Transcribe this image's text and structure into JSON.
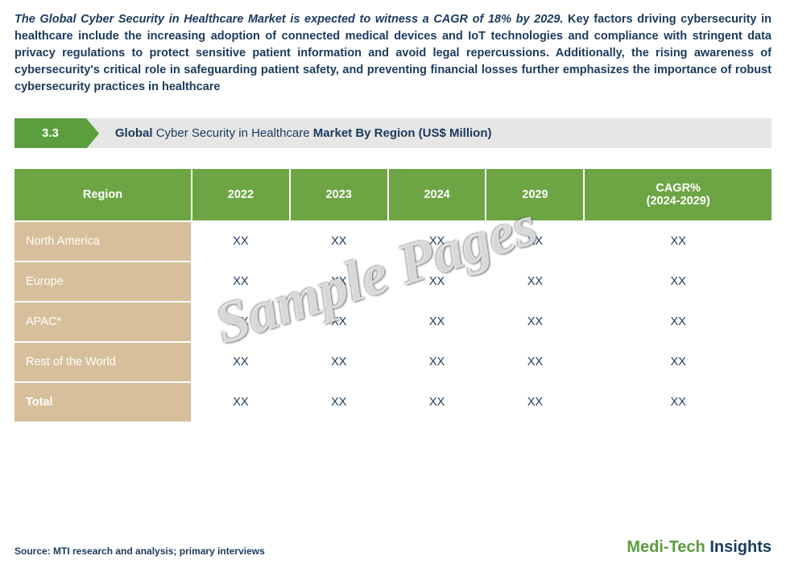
{
  "intro": {
    "lead": "The Global Cyber Security in Healthcare Market is expected to witness a CAGR of 18% by 2029.",
    "body": " Key factors driving cybersecurity in healthcare include the increasing adoption of connected medical devices and IoT technologies and compliance with stringent data privacy regulations to protect sensitive patient information and avoid legal repercussions. Additionally, the rising awareness of cybersecurity's critical role in safeguarding patient safety, and preventing financial losses further emphasizes the importance of robust cybersecurity practices in healthcare"
  },
  "section": {
    "num": "3.3",
    "title_pre": "Global ",
    "title_light": "Cyber Security in Healthcare ",
    "title_post": "Market By Region (US$ Million)"
  },
  "table": {
    "type": "table",
    "header_bg": "#6da544",
    "header_color": "#ffffff",
    "rowlabel_bg": "#d6bf9a",
    "rowlabel_color": "#ffffff",
    "cell_color": "#1a3a5c",
    "columns": [
      "Region",
      "2022",
      "2023",
      "2024",
      "2029",
      "CAGR% (2024-2029)"
    ],
    "rows": [
      {
        "label": "North America",
        "v": [
          "XX",
          "XX",
          "XX",
          "XX",
          "XX"
        ],
        "total": false
      },
      {
        "label": "Europe",
        "v": [
          "XX",
          "XX",
          "XX",
          "XX",
          "XX"
        ],
        "total": false
      },
      {
        "label": "APAC*",
        "v": [
          "XX",
          "XX",
          "XX",
          "XX",
          "XX"
        ],
        "total": false
      },
      {
        "label": "Rest of the World",
        "v": [
          "XX",
          "XX",
          "XX",
          "XX",
          "XX"
        ],
        "total": false
      },
      {
        "label": "Total",
        "v": [
          "XX",
          "XX",
          "XX",
          "XX",
          "XX"
        ],
        "total": true
      }
    ]
  },
  "watermark": "Sample Pages",
  "footer": {
    "source": "Source: MTI research and analysis; primary interviews",
    "brand1": "Medi-Tech ",
    "brand2": "Insights"
  },
  "colors": {
    "brand_green": "#5a9e3e",
    "brand_navy": "#1a3a5c",
    "section_bg": "#e6e6e6"
  }
}
